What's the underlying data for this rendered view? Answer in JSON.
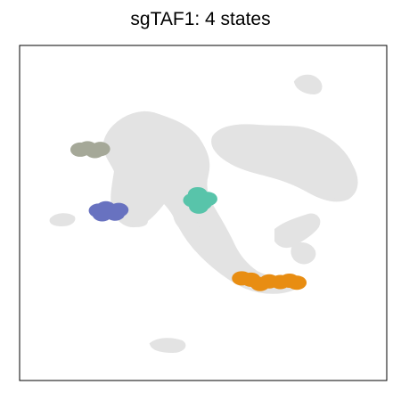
{
  "chart_data": {
    "type": "scatter",
    "title": "sgTAF1: 4 states",
    "xlabel": "",
    "ylabel": "",
    "xlim": [
      0,
      100
    ],
    "ylim": [
      0,
      100
    ],
    "grid": false,
    "background_color": "#e3e3e3",
    "series": [
      {
        "color": "#a5a898",
        "points": [
          [
            16.5,
            68.9
          ],
          [
            18.5,
            69.3
          ],
          [
            20.5,
            68.5
          ],
          [
            22.0,
            69.1
          ]
        ]
      },
      {
        "color": "#6872c0",
        "points": [
          [
            21.5,
            50.7
          ],
          [
            23.5,
            51.4
          ],
          [
            25.5,
            50.3
          ],
          [
            27.0,
            50.9
          ],
          [
            22.5,
            49.6
          ],
          [
            26.0,
            49.8
          ]
        ]
      },
      {
        "color": "#58c4aa",
        "points": [
          [
            47.2,
            53.8
          ],
          [
            48.5,
            55.6
          ],
          [
            49.8,
            53.0
          ],
          [
            51.2,
            54.2
          ],
          [
            48.8,
            51.9
          ]
        ]
      },
      {
        "color": "#e88d12",
        "points": [
          [
            60.5,
            30.5
          ],
          [
            63.0,
            30.1
          ],
          [
            65.5,
            28.8
          ],
          [
            68.0,
            29.6
          ],
          [
            71.0,
            29.4
          ],
          [
            73.5,
            29.8
          ],
          [
            75.5,
            29.2
          ]
        ]
      }
    ]
  }
}
